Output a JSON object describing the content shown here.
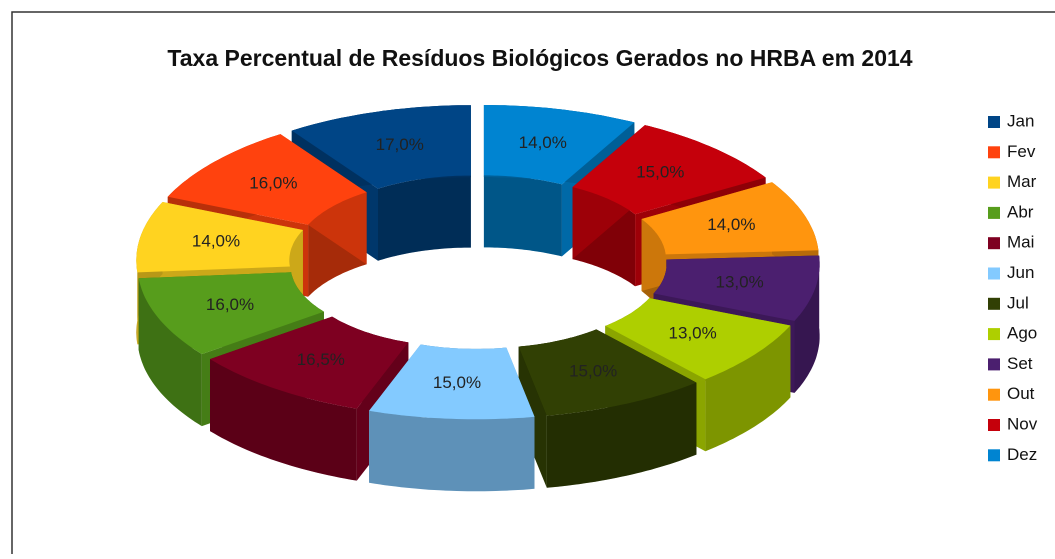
{
  "chart_data": {
    "type": "donut3d",
    "title": "Taxa Percentual de Resíduos Biológicos Gerados no HRBA em 2014",
    "categories": [
      "Jan",
      "Fev",
      "Mar",
      "Abr",
      "Mai",
      "Jun",
      "Jul",
      "Ago",
      "Set",
      "Out",
      "Nov",
      "Dez"
    ],
    "values": [
      17.0,
      16.0,
      14.0,
      16.0,
      16.5,
      15.0,
      15.0,
      13.0,
      13.0,
      14.0,
      15.0,
      14.0
    ],
    "value_labels": [
      "17,0%",
      "16,0%",
      "14,0%",
      "16,0%",
      "16,5%",
      "15,0%",
      "15,0%",
      "13,0%",
      "13,0%",
      "14,0%",
      "15,0%",
      "14,0%"
    ],
    "colors": [
      "#004586",
      "#ff420e",
      "#ffd320",
      "#579d1c",
      "#7e0021",
      "#83caff",
      "#314004",
      "#aecf00",
      "#4b1f6f",
      "#ff950e",
      "#c5000b",
      "#0084d1"
    ],
    "legend": "right"
  }
}
